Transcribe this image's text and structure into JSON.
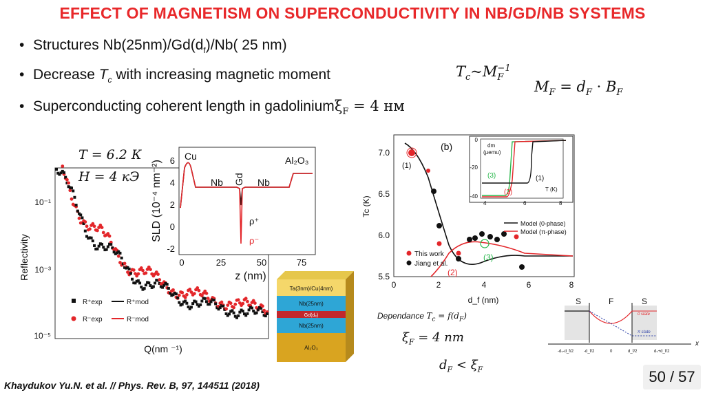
{
  "title": "EFFECT OF MAGNETISM ON SUPERCONDUCTIVITY IN NB/GD/NB SYSTEMS",
  "bullets": [
    {
      "text": "Structures Nb(25nm)/Gd(d",
      "sub": "f",
      "tail": ")/Nb( 25 nm)"
    },
    {
      "text": "Decrease ",
      "var": "T",
      "sub": "c",
      "tail": " with increasing magnetic moment"
    },
    {
      "text": "Superconducting coherent length in gadolinium",
      "math": "ξ",
      "math_sub": "F",
      "math_tail": " = 4 нм"
    }
  ],
  "formulas": {
    "tc_relation": {
      "lhs": "T",
      "lhs_sub": "c",
      "op": "~",
      "rhs": "M",
      "rhs_sub": "F",
      "rhs_sup": "−1"
    },
    "mf_relation": {
      "lhs": "M",
      "lhs_sub": "F",
      "eq": " = ",
      "a": "d",
      "a_sub": "F",
      "dot": " · ",
      "b": "B",
      "b_sub": "F"
    },
    "temperature": "T = 6.2 К",
    "field": "H = 4 кЭ",
    "xi": {
      "var": "ξ",
      "sub": "F",
      "rest": " = 4 nm"
    },
    "df_lt_xi": {
      "a": "d",
      "a_sub": "F",
      "op": " < ",
      "b": "ξ",
      "b_sub": "F"
    },
    "dependance": {
      "word": "Dependance ",
      "a": "T",
      "a_sub": "c",
      "rest": " = f(d",
      "f_sub": "F",
      "close": ")"
    }
  },
  "reflectivity_plot": {
    "ylabel": "Reflectivity",
    "xlabel": "Q(nm ⁻¹)",
    "yticks": [
      "10⁻¹",
      "10⁻³",
      "10⁻⁵"
    ],
    "legend": [
      {
        "label": "R⁺exp",
        "color": "#111111",
        "style": "square"
      },
      {
        "label": "R⁺mod",
        "color": "#111111",
        "style": "line"
      },
      {
        "label": "R⁻exp",
        "color": "#e3262a",
        "style": "dot"
      },
      {
        "label": "R⁻mod",
        "color": "#e3262a",
        "style": "line"
      }
    ]
  },
  "sld_plot": {
    "ylabel": "SLD (10⁻⁴ nm⁻²)",
    "xlabel": "z (nm)",
    "xticks": [
      "0",
      "25",
      "50",
      "75"
    ],
    "yticks": [
      "6",
      "4",
      "2",
      "0",
      "-2"
    ],
    "layer_labels": [
      "Cu",
      "Nb",
      "Gd",
      "Nb",
      "Al₂O₃"
    ],
    "curve_labels": [
      "ρ⁺",
      "ρ⁻"
    ]
  },
  "stack": {
    "layers": [
      {
        "label": "Ta(3nm)/Cu(4nm)",
        "color": "#f5d76a"
      },
      {
        "label": "Nb(25nm)",
        "color": "#2ea6d6"
      },
      {
        "label": "Gd(dₑ)",
        "color": "#c2272d"
      },
      {
        "label": "Nb(25nm)",
        "color": "#2ea6d6"
      },
      {
        "label": "Al₂O₃",
        "color": "#d9a420"
      }
    ]
  },
  "tc_plot": {
    "panel_label": "(b)",
    "ylabel": "Tc (K)",
    "xlabel": "d_f (nm)",
    "xticks": [
      "0",
      "2",
      "4",
      "6",
      "8"
    ],
    "yticks": [
      "7.0",
      "6.5",
      "6.0",
      "5.5"
    ],
    "annotations": [
      "(1)",
      "(2)",
      "(3)"
    ],
    "legend_points": [
      {
        "label": "This work",
        "color": "#e3262a"
      },
      {
        "label": "Jiang et al.",
        "color": "#111111"
      }
    ],
    "legend_lines": [
      {
        "label": "Model (0-phase)",
        "color": "#111111"
      },
      {
        "label": "Model (π-phase)",
        "color": "#e3262a"
      }
    ],
    "inset": {
      "ylabel_top": "dm",
      "ylabel_unit": "(μemu)",
      "xlabel": "T (K)",
      "xticks": [
        "4",
        "6",
        "8"
      ],
      "yticks": [
        "0",
        "-20",
        "-40"
      ],
      "labels": [
        "(1)",
        "(2)",
        "(3)"
      ]
    }
  },
  "sfs_diagram": {
    "region_labels": [
      "S",
      "F",
      "S"
    ],
    "axis_labels": [
      "-dₛ-d_f/2",
      "-d_f/2",
      "0",
      "d_f/2",
      "dₛ+d_f/2"
    ],
    "axis_var": "x",
    "state_labels": [
      "0 state",
      "π state"
    ]
  },
  "page_number": "50 / 57",
  "citation": "Khaydukov Yu.N. et al. // Phys. Rev. B, 97, 144511 (2018)"
}
